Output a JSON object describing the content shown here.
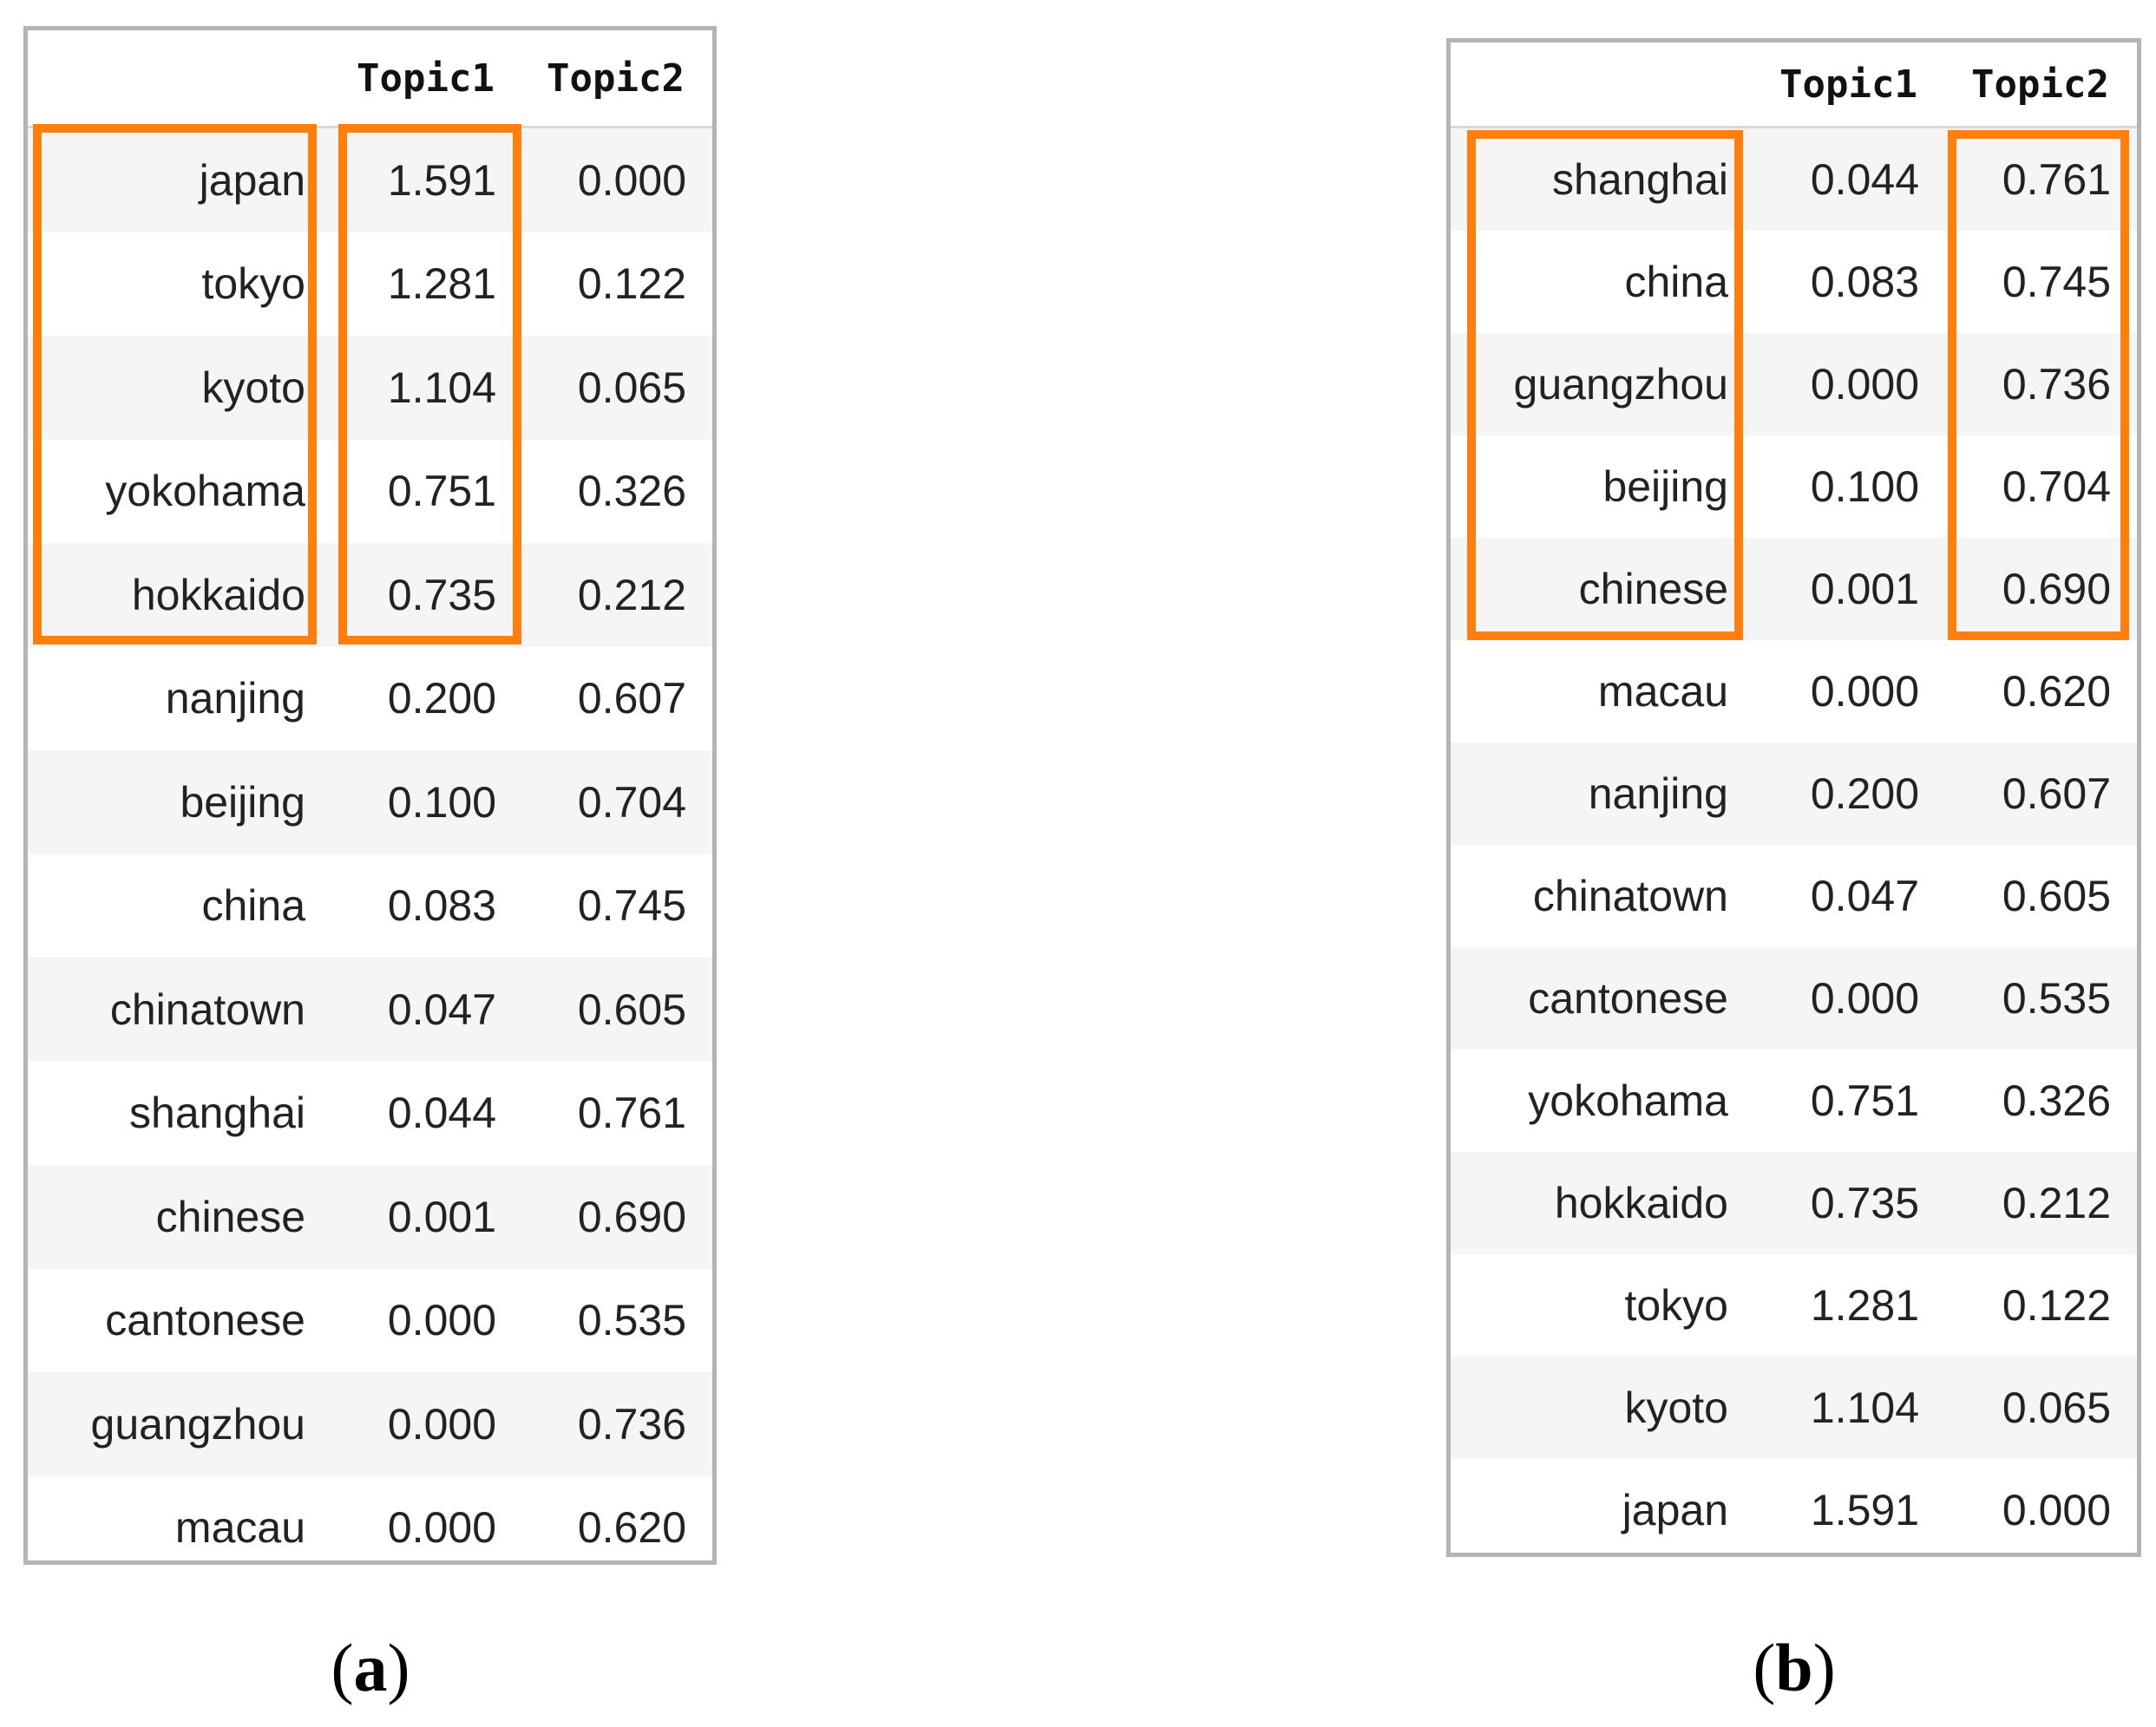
{
  "tables": [
    {
      "label": "a",
      "columns": [
        "",
        "Topic1",
        "Topic2"
      ],
      "rows": [
        {
          "term": "japan",
          "topic1": "1.591",
          "topic2": "0.000"
        },
        {
          "term": "tokyo",
          "topic1": "1.281",
          "topic2": "0.122"
        },
        {
          "term": "kyoto",
          "topic1": "1.104",
          "topic2": "0.065"
        },
        {
          "term": "yokohama",
          "topic1": "0.751",
          "topic2": "0.326"
        },
        {
          "term": "hokkaido",
          "topic1": "0.735",
          "topic2": "0.212"
        },
        {
          "term": "nanjing",
          "topic1": "0.200",
          "topic2": "0.607"
        },
        {
          "term": "beijing",
          "topic1": "0.100",
          "topic2": "0.704"
        },
        {
          "term": "china",
          "topic1": "0.083",
          "topic2": "0.745"
        },
        {
          "term": "chinatown",
          "topic1": "0.047",
          "topic2": "0.605"
        },
        {
          "term": "shanghai",
          "topic1": "0.044",
          "topic2": "0.761"
        },
        {
          "term": "chinese",
          "topic1": "0.001",
          "topic2": "0.690"
        },
        {
          "term": "cantonese",
          "topic1": "0.000",
          "topic2": "0.535"
        },
        {
          "term": "guangzhou",
          "topic1": "0.000",
          "topic2": "0.736"
        },
        {
          "term": "macau",
          "topic1": "0.000",
          "topic2": "0.620"
        }
      ],
      "highlighted_columns": [
        "term",
        "Topic1"
      ],
      "highlighted_top_rows": 5
    },
    {
      "label": "b",
      "columns": [
        "",
        "Topic1",
        "Topic2"
      ],
      "rows": [
        {
          "term": "shanghai",
          "topic1": "0.044",
          "topic2": "0.761"
        },
        {
          "term": "china",
          "topic1": "0.083",
          "topic2": "0.745"
        },
        {
          "term": "guangzhou",
          "topic1": "0.000",
          "topic2": "0.736"
        },
        {
          "term": "beijing",
          "topic1": "0.100",
          "topic2": "0.704"
        },
        {
          "term": "chinese",
          "topic1": "0.001",
          "topic2": "0.690"
        },
        {
          "term": "macau",
          "topic1": "0.000",
          "topic2": "0.620"
        },
        {
          "term": "nanjing",
          "topic1": "0.200",
          "topic2": "0.607"
        },
        {
          "term": "chinatown",
          "topic1": "0.047",
          "topic2": "0.605"
        },
        {
          "term": "cantonese",
          "topic1": "0.000",
          "topic2": "0.535"
        },
        {
          "term": "yokohama",
          "topic1": "0.751",
          "topic2": "0.326"
        },
        {
          "term": "hokkaido",
          "topic1": "0.735",
          "topic2": "0.212"
        },
        {
          "term": "tokyo",
          "topic1": "1.281",
          "topic2": "0.122"
        },
        {
          "term": "kyoto",
          "topic1": "1.104",
          "topic2": "0.065"
        },
        {
          "term": "japan",
          "topic1": "1.591",
          "topic2": "0.000"
        }
      ],
      "highlighted_columns": [
        "term",
        "Topic2"
      ],
      "highlighted_top_rows": 5
    }
  ],
  "captions": {
    "a": {
      "open": "(",
      "letter": "a",
      "close": ")"
    },
    "b": {
      "open": "(",
      "letter": "b",
      "close": ")"
    }
  },
  "colors": {
    "highlight": "#ff7f0e",
    "panel_border": "#b4b4b4",
    "stripe": "#f5f5f5"
  }
}
